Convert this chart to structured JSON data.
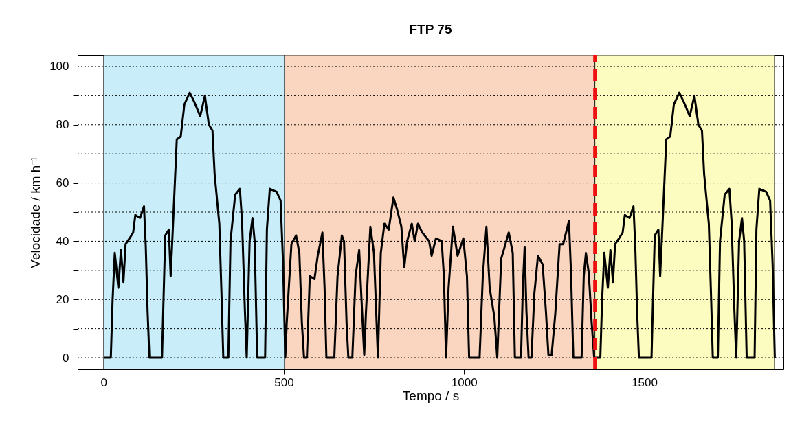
{
  "chart_data": {
    "type": "line",
    "title": "FTP 75",
    "xlabel": "Tempo / s",
    "ylabel": "Velocidade / km h⁻¹",
    "xlim": [
      -72,
      1886
    ],
    "xticks": [
      0,
      500,
      1000,
      1500
    ],
    "ylim": [
      -4,
      104
    ],
    "yticks": [
      0,
      {
        "value": 10,
        "label": null
      },
      20,
      {
        "value": 30,
        "label": null
      },
      40,
      {
        "value": 50,
        "label": null
      },
      60,
      {
        "value": 70,
        "label": null
      },
      80,
      {
        "value": 90,
        "label": null
      },
      100
    ],
    "grid": "y",
    "line_style": "solid",
    "x": [
      2,
      20,
      25,
      31,
      41,
      48,
      55,
      61,
      72,
      82,
      88,
      101,
      112,
      117,
      122,
      127,
      162,
      166,
      171,
      181,
      186,
      193,
      203,
      214,
      224,
      239,
      251,
      268,
      281,
      292,
      302,
      308,
      321,
      327,
      332,
      346,
      352,
      365,
      378,
      384,
      392,
      397,
      405,
      413,
      419,
      426,
      448,
      453,
      461,
      480,
      491,
      498,
      504,
      508,
      521,
      534,
      543,
      550,
      556,
      564,
      572,
      585,
      594,
      607,
      613,
      618,
      640,
      649,
      661,
      667,
      674,
      679,
      690,
      699,
      709,
      717,
      723,
      728,
      740,
      750,
      761,
      769,
      779,
      791,
      804,
      814,
      826,
      834,
      842,
      855,
      863,
      872,
      884,
      903,
      910,
      922,
      938,
      944,
      950,
      957,
      969,
      982,
      998,
      1008,
      1014,
      1043,
      1052,
      1062,
      1071,
      1084,
      1092,
      1103,
      1124,
      1135,
      1141,
      1158,
      1163,
      1168,
      1173,
      1179,
      1187,
      1195,
      1205,
      1218,
      1227,
      1234,
      1243,
      1253,
      1265,
      1275,
      1291,
      1297,
      1303,
      1326,
      1332,
      1338,
      1346,
      1354,
      1361,
      1362,
      1378,
      1383,
      1389,
      1399,
      1406,
      1413,
      1419,
      1430,
      1440,
      1446,
      1459,
      1470,
      1475,
      1480,
      1485,
      1520,
      1524,
      1529,
      1539,
      1544,
      1551,
      1561,
      1572,
      1582,
      1597,
      1609,
      1626,
      1639,
      1650,
      1660,
      1666,
      1679,
      1685,
      1690,
      1704,
      1710,
      1723,
      1736,
      1742,
      1750,
      1755,
      1763,
      1771,
      1777,
      1784,
      1806,
      1811,
      1819,
      1838,
      1849,
      1856,
      1862
    ],
    "series": [
      {
        "color": "#000000",
        "values": [
          0,
          0,
          20,
          36,
          24,
          37,
          26,
          39,
          41,
          43,
          49,
          48,
          52,
          38,
          16,
          0,
          0,
          19,
          42,
          44,
          28,
          47,
          75,
          76,
          87,
          91,
          88,
          83,
          90,
          80,
          78,
          63,
          46,
          22,
          0,
          0,
          40,
          56,
          58,
          47,
          16,
          0,
          40,
          48,
          40,
          0,
          0,
          44,
          58,
          57,
          54,
          32,
          0,
          12,
          39,
          42,
          36,
          12,
          0,
          0,
          28,
          27,
          35,
          43,
          24,
          0,
          0,
          28,
          42,
          40,
          12,
          0,
          0,
          28,
          37,
          16,
          1,
          16,
          45,
          36,
          0,
          36,
          46,
          44,
          55,
          51,
          45,
          31,
          40,
          46,
          40,
          46,
          43,
          40,
          35,
          41,
          40,
          28,
          0,
          24,
          45,
          35,
          41,
          28,
          0,
          0,
          28,
          45,
          24,
          14,
          0,
          34,
          43,
          36,
          0,
          0,
          24,
          38,
          16,
          0,
          0,
          22,
          35,
          32,
          16,
          1,
          1,
          15,
          39,
          39,
          47,
          28,
          0,
          0,
          28,
          36,
          29,
          12,
          0,
          0,
          0,
          20,
          36,
          24,
          37,
          26,
          39,
          41,
          43,
          49,
          48,
          52,
          38,
          16,
          0,
          0,
          19,
          42,
          44,
          28,
          47,
          75,
          76,
          87,
          91,
          88,
          83,
          90,
          80,
          78,
          63,
          46,
          22,
          0,
          0,
          40,
          56,
          58,
          47,
          16,
          0,
          40,
          48,
          40,
          0,
          0,
          44,
          58,
          57,
          54,
          32,
          0
        ]
      }
    ],
    "bands": [
      {
        "axis": "x",
        "from": 0,
        "to": 502,
        "color": "#c9eefa"
      },
      {
        "axis": "x",
        "from": 502,
        "to": 1363,
        "color": "#fad5bf"
      },
      {
        "axis": "x",
        "from": 1363,
        "to": 1861,
        "color": "#fdfcc0"
      }
    ],
    "ref_lines": [
      {
        "axis": "x",
        "value": 1363,
        "color": "#ee1111",
        "line_style": "dashed"
      }
    ]
  }
}
